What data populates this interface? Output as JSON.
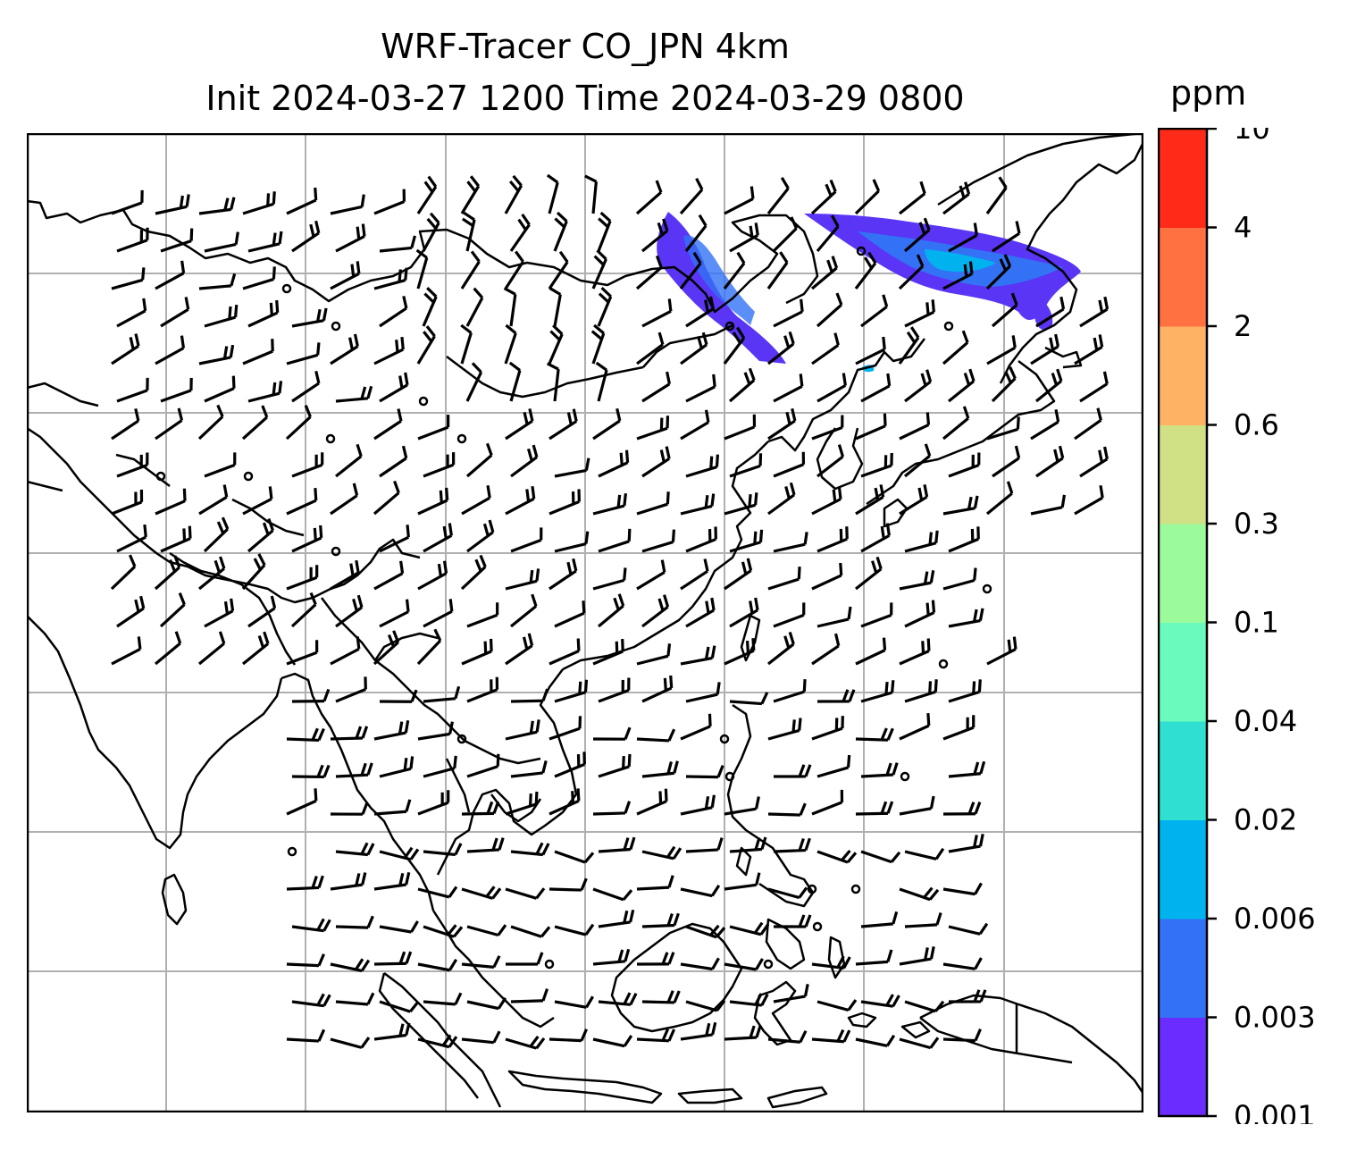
{
  "title": {
    "line1": "WRF-Tracer CO_JPN 4km",
    "line2": "Init 2024-03-27 1200 Time 2024-03-29 0800"
  },
  "colorbar": {
    "unit": "ppm",
    "levels": [
      "0.001",
      "0.003",
      "0.006",
      "0.02",
      "0.04",
      "0.1",
      "0.3",
      "0.6",
      "2",
      "4",
      "10"
    ],
    "colors": [
      "#6a2cff",
      "#3372f5",
      "#00b3ef",
      "#2fdfd1",
      "#69fbbe",
      "#9bfb9b",
      "#cfe085",
      "#fdb363",
      "#ff7140",
      "#ff2a18"
    ]
  },
  "map": {
    "gridline_color": "#b0b0b0",
    "coastline_color": "#000000",
    "wind_barb_color": "#000000",
    "tracer_plume_color": "#5a35f5"
  }
}
